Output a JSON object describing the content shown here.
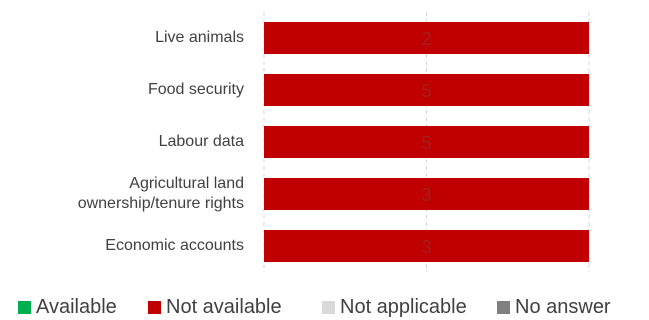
{
  "chart_data": {
    "type": "bar",
    "orientation": "horizontal",
    "stacked": true,
    "percent_stacked": true,
    "categories": [
      "Live animals",
      "Food security",
      "Labour data",
      "Agricultural land ownership/tenure rights",
      "Economic accounts"
    ],
    "series": [
      {
        "name": "Available",
        "values": [
          0,
          0,
          0,
          0,
          0
        ],
        "color": "#00B050"
      },
      {
        "name": "Not available",
        "values": [
          2,
          5,
          5,
          3,
          3
        ],
        "color": "#C00000"
      },
      {
        "name": "Not applicable",
        "values": [
          0,
          0,
          0,
          0,
          0
        ],
        "color": "#D9D9D9"
      },
      {
        "name": "No answer",
        "values": [
          0,
          0,
          0,
          0,
          0
        ],
        "color": "#808080"
      }
    ],
    "data_labels": [
      "2",
      "5",
      "5",
      "3",
      "3"
    ],
    "title": "",
    "xlabel": "",
    "ylabel": "",
    "grid": "vertical dashed gridlines",
    "legend_position": "bottom"
  }
}
